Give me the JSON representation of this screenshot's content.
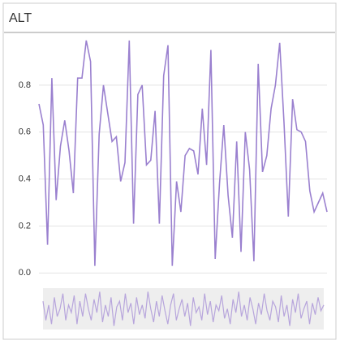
{
  "chart_data": [
    {
      "type": "line",
      "title": "ALT",
      "color": "#9a80cf",
      "grid": true,
      "ylim": [
        -0.03,
        1.0
      ],
      "yticks": [
        {
          "value": 0,
          "label": "0.0"
        },
        0.2,
        0.4,
        0.6,
        0.8
      ],
      "values": [
        0.72,
        0.63,
        0.12,
        0.83,
        0.31,
        0.54,
        0.65,
        0.52,
        0.34,
        0.83,
        0.83,
        0.99,
        0.9,
        0.03,
        0.59,
        0.8,
        0.68,
        0.56,
        0.58,
        0.39,
        0.47,
        0.99,
        0.21,
        0.76,
        0.8,
        0.46,
        0.48,
        0.69,
        0.21,
        0.84,
        0.97,
        0.03,
        0.39,
        0.26,
        0.5,
        0.53,
        0.52,
        0.42,
        0.7,
        0.46,
        0.95,
        0.06,
        0.38,
        0.63,
        0.33,
        0.15,
        0.56,
        0.09,
        0.6,
        0.44,
        0.05,
        0.89,
        0.43,
        0.5,
        0.7,
        0.8,
        0.98,
        0.64,
        0.24,
        0.74,
        0.61,
        0.6,
        0.56,
        0.35,
        0.26,
        0.3,
        0.34,
        0.26
      ]
    },
    {
      "type": "line",
      "color": "#b7a5dc",
      "ylim": [
        0,
        1
      ],
      "values": [
        0.7,
        0.2,
        0.6,
        0.1,
        0.8,
        0.3,
        0.5,
        0.9,
        0.2,
        0.6,
        0.4,
        0.85,
        0.1,
        0.7,
        0.3,
        0.9,
        0.5,
        0.2,
        0.75,
        0.4,
        0.95,
        0.15,
        0.6,
        0.3,
        0.8,
        0.05,
        0.55,
        0.7,
        0.2,
        0.9,
        0.4,
        0.65,
        0.1,
        0.8,
        0.35,
        0.6,
        0.25,
        0.95,
        0.5,
        0.15,
        0.7,
        0.3,
        0.85,
        0.45,
        0.1,
        0.6,
        0.9,
        0.2,
        0.5,
        0.75,
        0.3,
        0.65,
        0.05,
        0.8,
        0.4,
        0.55,
        0.2,
        0.9,
        0.35,
        0.7,
        0.15,
        0.6,
        0.45,
        0.85,
        0.25,
        0.5,
        0.1,
        0.75,
        0.4,
        0.95,
        0.3,
        0.6,
        0.2,
        0.8,
        0.5,
        0.1,
        0.65,
        0.35,
        0.9,
        0.45,
        0.2,
        0.7,
        0.55,
        0.15,
        0.85,
        0.3,
        0.6,
        0.05,
        0.75,
        0.4,
        0.9,
        0.25,
        0.5,
        0.7,
        0.1,
        0.65,
        0.35,
        0.8,
        0.45,
        0.6
      ]
    }
  ]
}
